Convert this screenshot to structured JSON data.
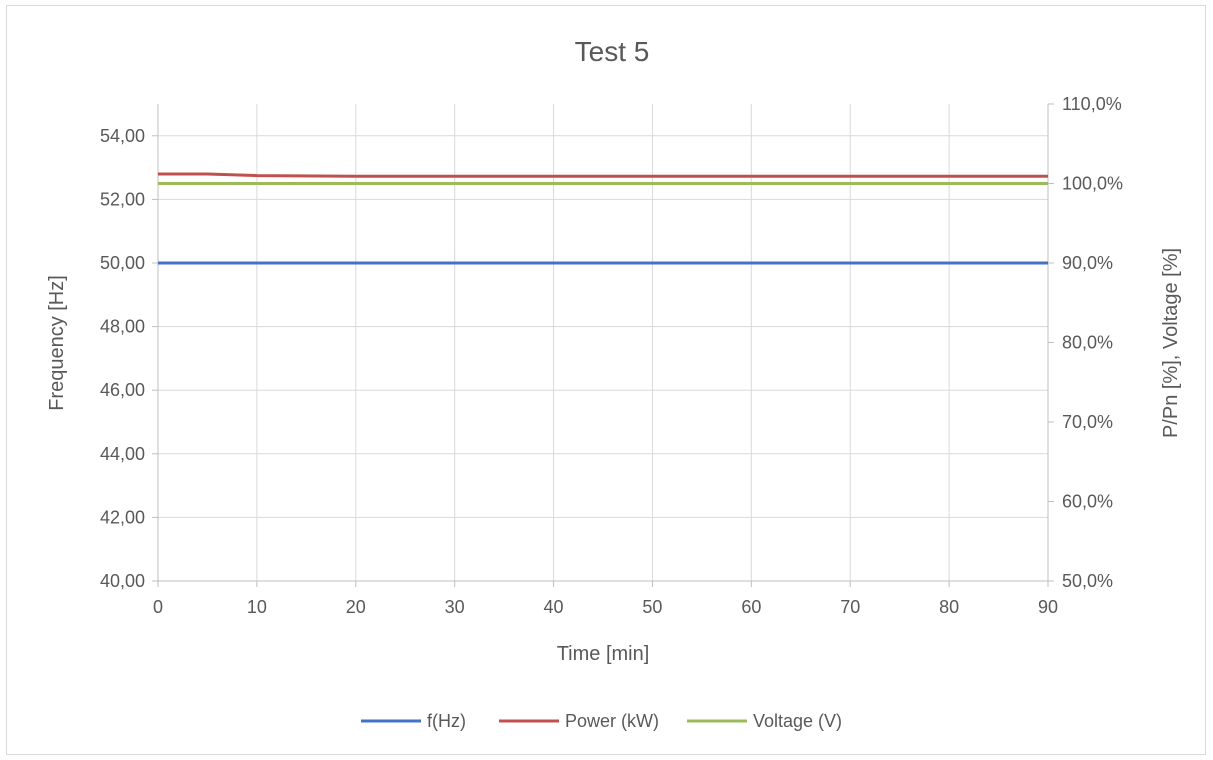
{
  "chart_data": {
    "type": "line",
    "title": "Test 5",
    "xlabel": "Time [min]",
    "ylabel": "Frequency [Hz]",
    "y2label": "P/Pn [%], Voltage [%]",
    "xlim": [
      0,
      90
    ],
    "ylim": [
      40,
      55
    ],
    "y2lim": [
      50,
      110
    ],
    "x_ticks": [
      "0",
      "10",
      "20",
      "30",
      "40",
      "50",
      "60",
      "70",
      "80",
      "90"
    ],
    "y_ticks": [
      "40,00",
      "42,00",
      "44,00",
      "46,00",
      "48,00",
      "50,00",
      "52,00",
      "54,00"
    ],
    "y2_ticks": [
      "50,0%",
      "60,0%",
      "70,0%",
      "80,0%",
      "90,0%",
      "100,0%",
      "110,0%"
    ],
    "grid": true,
    "legend_position": "bottom",
    "series": [
      {
        "name": "f(Hz)",
        "axis": "left",
        "color": "#4472c4",
        "x": [
          0,
          90
        ],
        "values": [
          50.0,
          50.0
        ]
      },
      {
        "name": "Power (kW)",
        "axis": "right",
        "color": "#c0504d",
        "x": [
          0,
          5,
          10,
          20,
          30,
          40,
          50,
          60,
          70,
          80,
          90
        ],
        "values": [
          101.2,
          101.2,
          101.0,
          100.9,
          100.9,
          100.9,
          100.9,
          100.9,
          100.9,
          100.9,
          100.9
        ]
      },
      {
        "name": "Voltage (V)",
        "axis": "right",
        "color": "#9bbb59",
        "x": [
          0,
          90
        ],
        "values": [
          100.0,
          100.0
        ]
      }
    ]
  }
}
